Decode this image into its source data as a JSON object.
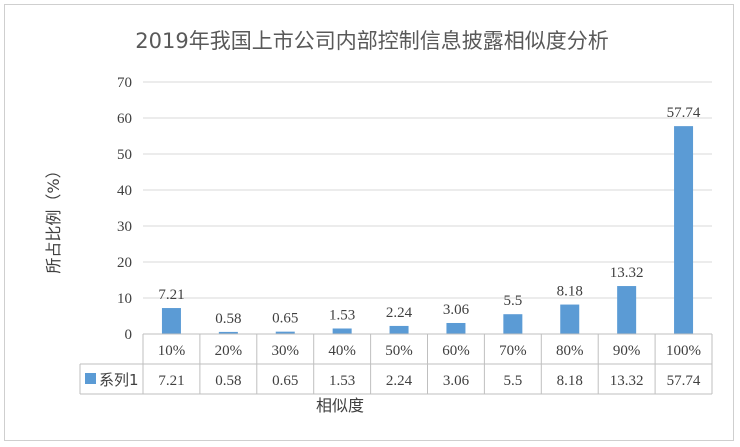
{
  "chart_data": {
    "type": "bar",
    "title": "2019年我国上市公司内部控制信息披露相似度分析",
    "xlabel": "相似度",
    "ylabel": "所占比例（%）",
    "categories": [
      "10%",
      "20%",
      "30%",
      "40%",
      "50%",
      "60%",
      "70%",
      "80%",
      "90%",
      "100%"
    ],
    "series": [
      {
        "name": "系列1",
        "values": [
          7.21,
          0.58,
          0.65,
          1.53,
          2.24,
          3.06,
          5.5,
          8.18,
          13.32,
          57.74
        ],
        "labels": [
          "7.21",
          "0.58",
          "0.65",
          "1.53",
          "2.24",
          "3.06",
          "5.5",
          "8.18",
          "13.32",
          "57.74"
        ],
        "color": "#5b9bd5"
      }
    ],
    "ylim": [
      0,
      70
    ],
    "yticks": [
      "0",
      "10",
      "20",
      "30",
      "40",
      "50",
      "60",
      "70"
    ],
    "grid": true,
    "data_table": true,
    "legend": "data-table"
  }
}
